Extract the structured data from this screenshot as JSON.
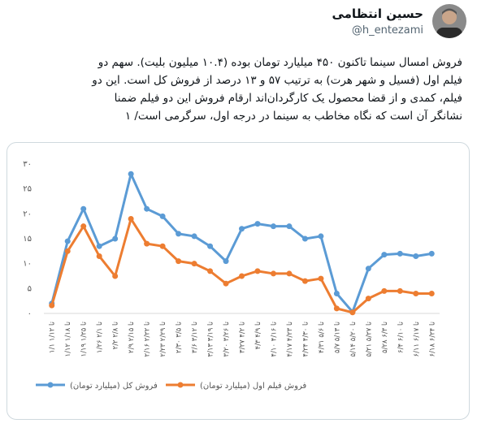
{
  "header": {
    "name": "حسین انتظامی",
    "handle": "@h_entezami"
  },
  "tweet": {
    "lines": [
      "فروش امسال سینما تاکنون ۴۵۰ میلیارد تومان بوده (۱۰.۴ میلیون بلیت). سهم دو",
      "فیلم اول (فسیل و شهر هرت) به ترتیب ۵۷ و ۱۳ درصد از فروش کل است. این دو",
      "فیلم، کمدی و از قضا محصول یک کارگردان‌اند ارقام فروش این دو فیلم ضمنا",
      "نشانگر آن است که نگاه مخاطب به سینما در درجه اول، سرگرمی است/ ۱"
    ]
  },
  "chart_data": {
    "type": "line",
    "categories": [
      "۱/۱ تا ۱/۱۲",
      "۱/۱۲ تا ۱/۱۸",
      "۱/۱۹ تا ۱/۲۵",
      "۱/۲۶ تا ۲/۱",
      "۲/۲ تا ۲/۸",
      "۲/۹ تا ۲/۱۵",
      "۲/۱۶ تا ۲/۲۲",
      "۲/۲۳ تا ۲/۲۹",
      "۲/۳۰ تا ۳/۵",
      "۳/۶ تا ۳/۱۲",
      "۳/۱۳ تا ۳/۱۹",
      "۳/۲۰ تا ۳/۲۶",
      "۳/۲۷ تا ۴/۲",
      "۴/۳ تا ۴/۹",
      "۴/۱۰ تا ۴/۱۶",
      "۴/۱۷ تا ۴/۲۳",
      "۴/۲۴ تا ۴/۳۰",
      "۴/۳۱ تا ۵/۶",
      "۵/۷ تا ۵/۱۳",
      "۵/۱۴ تا ۵/۲۰",
      "۵/۲۱ تا ۵/۲۷",
      "۵/۲۸ تا ۶/۳",
      "۶/۴ تا ۶/۱۰",
      "۶/۱۱ تا ۶/۱۷",
      "۶/۱۸ تا ۶/۲۴"
    ],
    "series": [
      {
        "name": "فروش کل (میلیارد تومان)",
        "color": "#5b9bd5",
        "values": [
          2,
          14.5,
          21,
          13.5,
          15,
          28,
          21,
          19.5,
          16,
          15.5,
          13.5,
          10.5,
          17,
          18,
          17.5,
          17.5,
          15,
          15.5,
          4,
          0.3,
          9,
          11.8,
          12,
          11.5,
          12
        ]
      },
      {
        "name": "فروش فیلم اول (میلیارد تومان)",
        "color": "#ed7d31",
        "values": [
          1.6,
          12.5,
          17.5,
          11.5,
          7.5,
          19,
          14,
          13.5,
          10.5,
          10,
          8.5,
          6,
          7.5,
          8.5,
          8,
          8,
          6.5,
          7,
          1,
          0.2,
          3,
          4.5,
          4.5,
          4,
          4
        ]
      }
    ],
    "ylim": [
      0,
      30
    ],
    "yticks": [
      {
        "value": 0,
        "label": "۰"
      },
      {
        "value": 5,
        "label": "۵"
      },
      {
        "value": 10,
        "label": "۱۰"
      },
      {
        "value": 15,
        "label": "۱۵"
      },
      {
        "value": 20,
        "label": "۲۰"
      },
      {
        "value": 25,
        "label": "۲۵"
      },
      {
        "value": 30,
        "label": "۳۰"
      }
    ],
    "grid": false
  }
}
